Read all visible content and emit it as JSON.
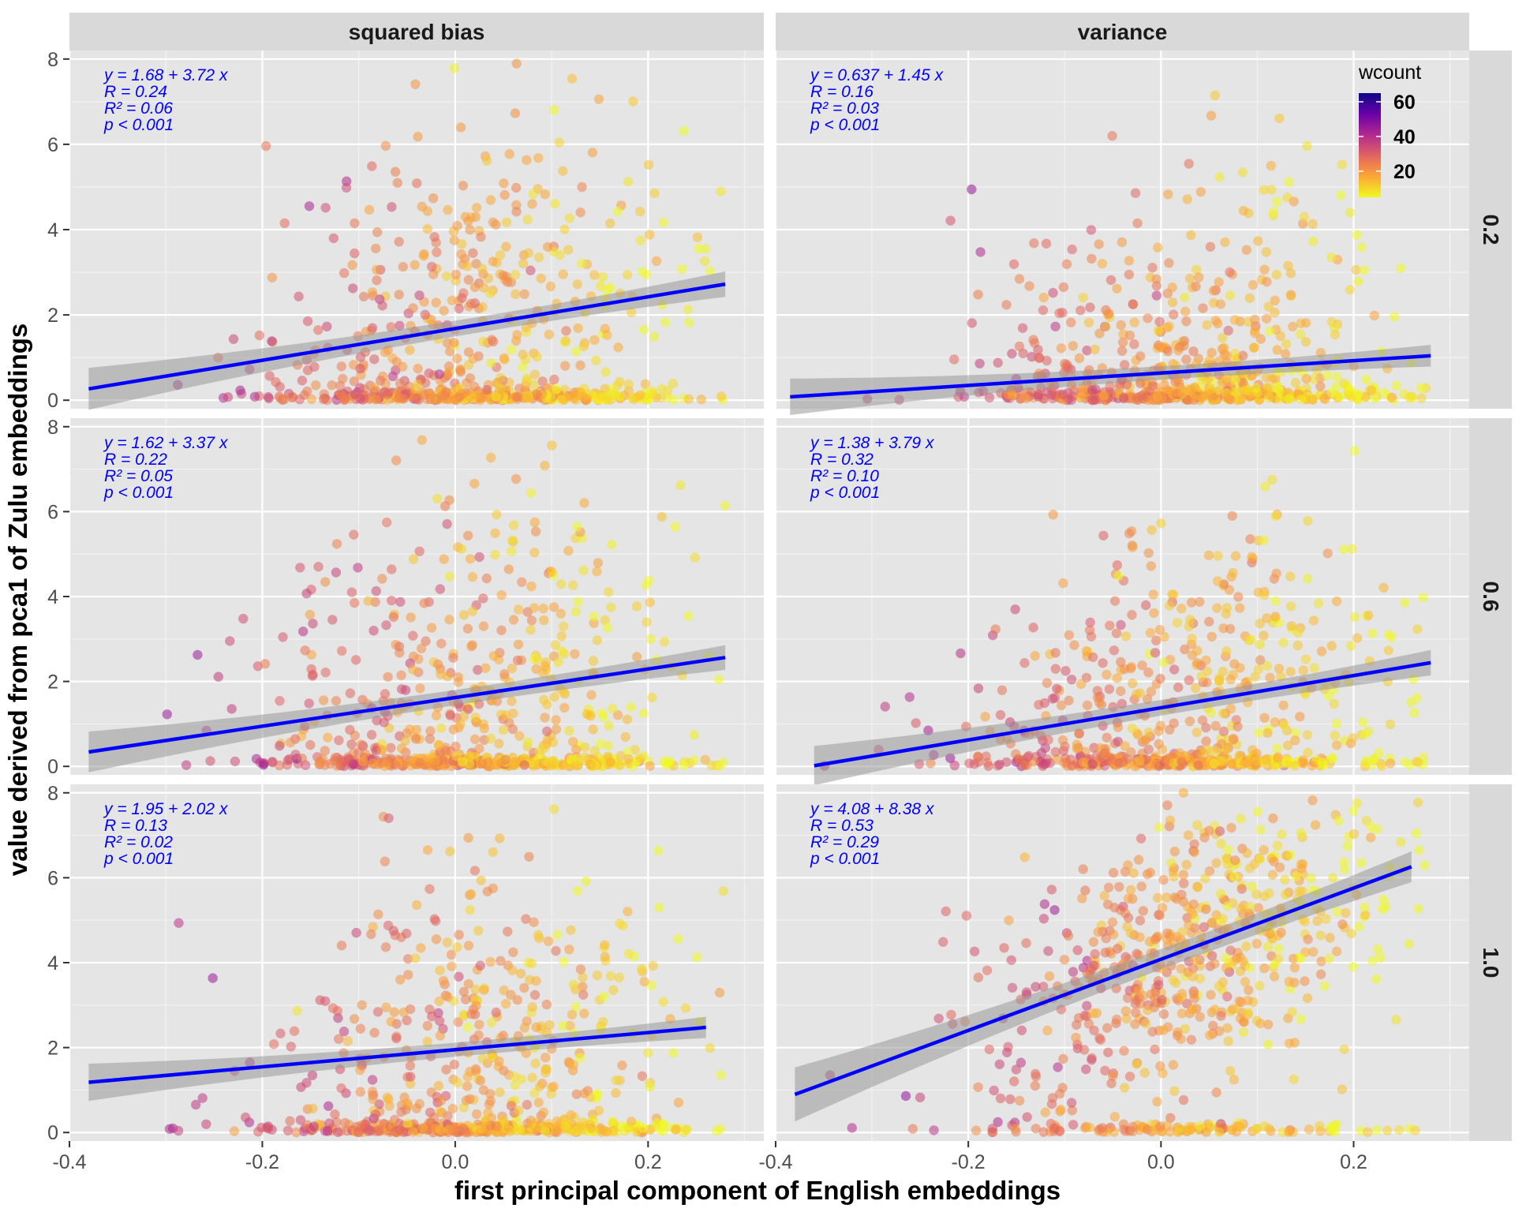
{
  "chart_data": {
    "type": "scatter",
    "facet_columns": [
      "squared bias",
      "variance"
    ],
    "facet_rows": [
      "0.2",
      "0.6",
      "1.0"
    ],
    "xlabel": "first principal component of English embeddings",
    "ylabel": "value derived from pca1 of Zulu embeddings",
    "xlim": [
      -0.4,
      0.32
    ],
    "ylim": [
      -0.2,
      8.2
    ],
    "xticks": [
      -0.4,
      -0.2,
      0.0,
      0.2
    ],
    "xtick_labels": [
      "-0.4",
      "-0.2",
      "0.0",
      "0.2"
    ],
    "yticks": [
      0,
      2,
      4,
      6,
      8
    ],
    "ytick_labels": [
      "0",
      "2",
      "4",
      "6",
      "8"
    ],
    "legend": {
      "title": "wcount",
      "labels": [
        "60",
        "40",
        "20"
      ],
      "values": [
        60,
        40,
        20
      ],
      "range": [
        5,
        65
      ],
      "placement": "top-right",
      "colors": [
        "#0d0887",
        "#6a00a8",
        "#b12a90",
        "#e16462",
        "#fca636",
        "#f0f921"
      ]
    },
    "colors": {
      "fit_line": "#0000ff",
      "ribbon": "#999999",
      "panel_bg": "#e5e5e5",
      "strip_bg": "#d9d9d9",
      "grid": "#ffffff"
    },
    "panels": [
      {
        "col": 0,
        "row": 0,
        "intercept": 1.68,
        "slope": 3.72,
        "r": 0.24,
        "r2": 0.06,
        "x_range": [
          -0.38,
          0.28
        ],
        "eq_text": "y = 1.68 + 3.72 x",
        "r_text": "R = 0.24",
        "r2_text": "R² = 0.06",
        "p_text": "p < 0.001"
      },
      {
        "col": 1,
        "row": 0,
        "intercept": 0.637,
        "slope": 1.45,
        "r": 0.16,
        "r2": 0.03,
        "x_range": [
          -0.385,
          0.28
        ],
        "eq_text": "y = 0.637 + 1.45 x",
        "r_text": "R = 0.16",
        "r2_text": "R² = 0.03",
        "p_text": "p < 0.001"
      },
      {
        "col": 0,
        "row": 1,
        "intercept": 1.62,
        "slope": 3.37,
        "r": 0.22,
        "r2": 0.05,
        "x_range": [
          -0.38,
          0.28
        ],
        "eq_text": "y = 1.62 + 3.37 x",
        "r_text": "R = 0.22",
        "r2_text": "R² = 0.05",
        "p_text": "p < 0.001"
      },
      {
        "col": 1,
        "row": 1,
        "intercept": 1.38,
        "slope": 3.79,
        "r": 0.32,
        "r2": 0.1,
        "x_range": [
          -0.36,
          0.28
        ],
        "eq_text": "y = 1.38 + 3.79 x",
        "r_text": "R = 0.32",
        "r2_text": "R² = 0.10",
        "p_text": "p < 0.001"
      },
      {
        "col": 0,
        "row": 2,
        "intercept": 1.95,
        "slope": 2.02,
        "r": 0.13,
        "r2": 0.02,
        "x_range": [
          -0.38,
          0.26
        ],
        "eq_text": "y = 1.95 + 2.02 x",
        "r_text": "R = 0.13",
        "r2_text": "R² = 0.02",
        "p_text": "p < 0.001"
      },
      {
        "col": 1,
        "row": 2,
        "intercept": 4.08,
        "slope": 8.38,
        "r": 0.53,
        "r2": 0.29,
        "x_range": [
          -0.38,
          0.26
        ],
        "eq_text": "y = 4.08 + 8.38 x",
        "r_text": "R = 0.53",
        "r2_text": "R² = 0.29",
        "p_text": "p < 0.001"
      }
    ],
    "points_note": "about 700 points per panel; x mostly in [-0.38, 0.28], y clipped to [0, 8]; low-x points have high wcount (purple), high-x points low wcount (yellow); many points near y = 0"
  }
}
